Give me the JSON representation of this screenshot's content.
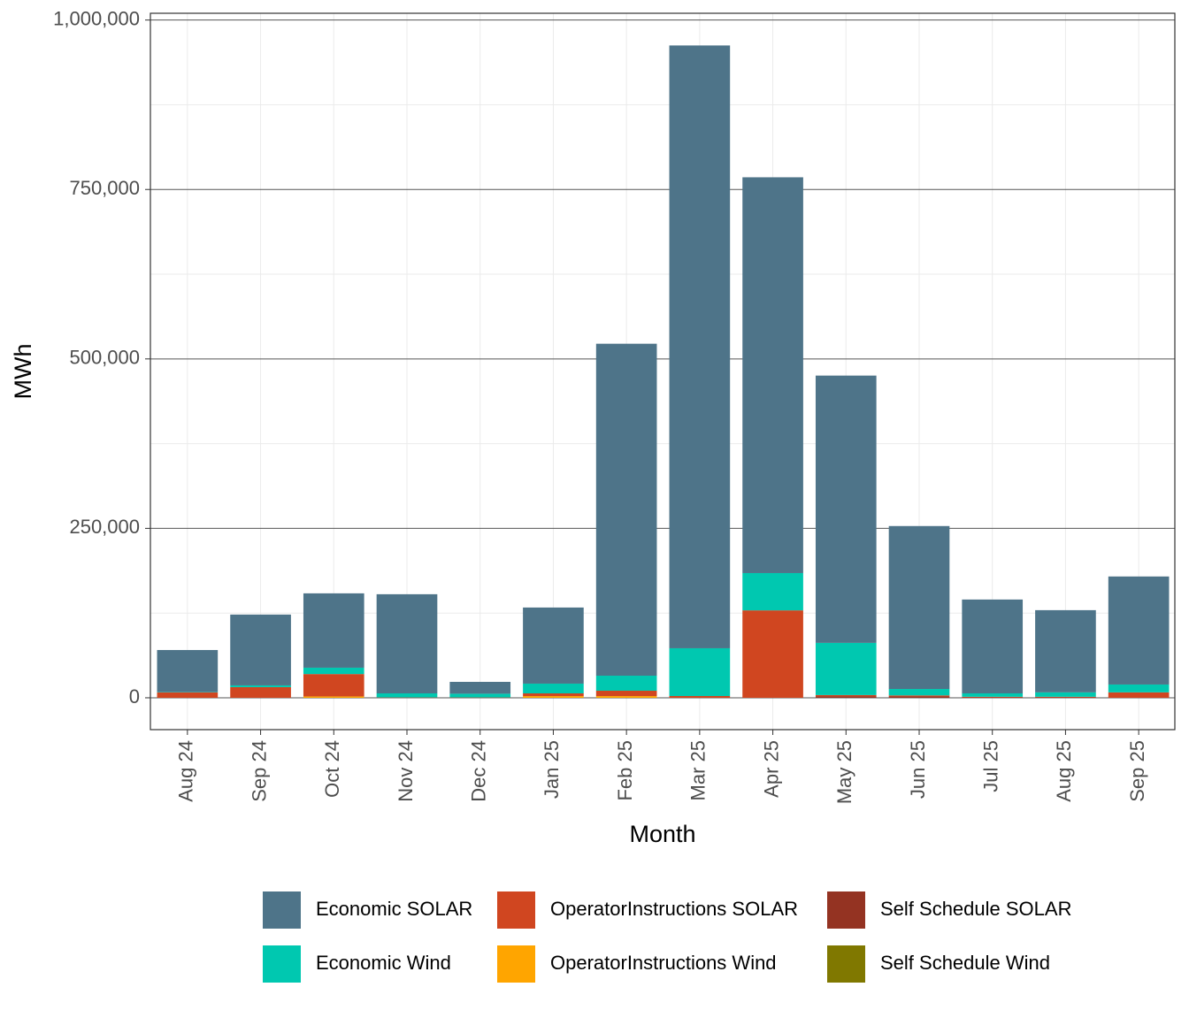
{
  "chart_data": {
    "type": "stacked_bar",
    "x_label": "Month",
    "y_label": "MWh",
    "categories": [
      "Aug 24",
      "Sep 24",
      "Oct 24",
      "Nov 24",
      "Dec 24",
      "Jan 25",
      "Feb 25",
      "Mar 25",
      "Apr 25",
      "May 25",
      "Jun 25",
      "Jul 25",
      "Aug 25",
      "Sep 25"
    ],
    "series": [
      {
        "name": "Economic SOLAR",
        "color": "#4e7489",
        "values": [
          62000,
          104500,
          109700,
          146300,
          17500,
          112300,
          489800,
          889400,
          584000,
          394400,
          240400,
          138500,
          121300,
          159400
        ]
      },
      {
        "name": "Economic Wind",
        "color": "#00c8b0",
        "values": [
          500,
          2600,
          9400,
          6000,
          5500,
          14400,
          22200,
          70500,
          55000,
          77000,
          9500,
          5000,
          6500,
          11600
        ]
      },
      {
        "name": "OperatorInstructions SOLAR",
        "color": "#d04620",
        "values": [
          8000,
          15700,
          33000,
          500,
          500,
          4000,
          7900,
          2600,
          129000,
          2000,
          1500,
          1000,
          1000,
          8000
        ]
      },
      {
        "name": "OperatorInstructions Wind",
        "color": "#ffa500",
        "values": [
          0,
          0,
          2000,
          0,
          0,
          2500,
          2500,
          0,
          0,
          0,
          0,
          0,
          0,
          0
        ]
      },
      {
        "name": "Self Schedule SOLAR",
        "color": "#943322",
        "values": [
          0,
          0,
          0,
          0,
          0,
          0,
          0,
          0,
          0,
          2000,
          2000,
          500,
          500,
          0
        ]
      },
      {
        "name": "Self Schedule Wind",
        "color": "#807800",
        "values": [
          0,
          0,
          0,
          0,
          0,
          0,
          0,
          0,
          0,
          0,
          0,
          0,
          0,
          0
        ]
      }
    ],
    "ylim": [
      -47000,
      1010000
    ],
    "yticks": [
      0,
      {
        "value": 250000,
        "label": "250,000"
      },
      {
        "value": 500000,
        "label": "500,000"
      },
      {
        "value": 750000,
        "label": "750,000"
      },
      {
        "value": 1000000,
        "label": "1,000,000"
      }
    ],
    "grid": true,
    "legend_position": "bottom"
  }
}
